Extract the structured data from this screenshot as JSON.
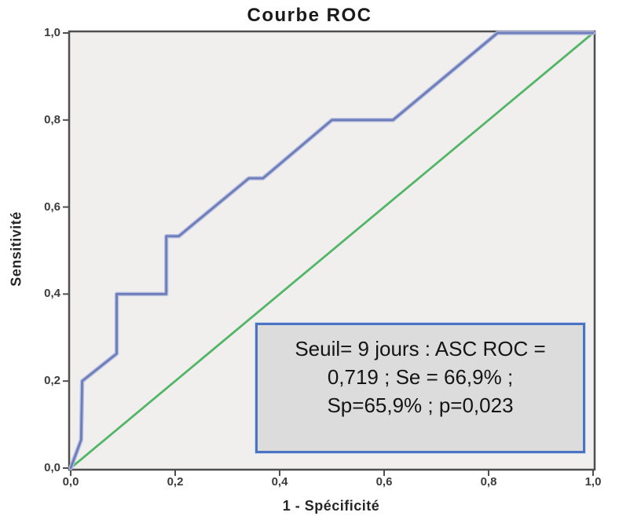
{
  "chart_data": {
    "type": "line",
    "title": "Courbe ROC",
    "xlabel": "1 - Spécificité",
    "ylabel": "Sensitivité",
    "xlim": [
      0,
      1
    ],
    "ylim": [
      0,
      1
    ],
    "grid": false,
    "legend": "none",
    "plot_background": "#f0efee",
    "frame_color": "#4f4f4f",
    "x_tick_labels": [
      "0,0",
      "0,2",
      "0,4",
      "0,6",
      "0,8",
      "1,0"
    ],
    "y_tick_labels": [
      "0,0",
      "0,2",
      "0,4",
      "0,6",
      "0,8",
      "1,0"
    ],
    "tick_values": [
      0,
      0.2,
      0.4,
      0.6,
      0.8,
      1.0
    ],
    "series": [
      {
        "name": "Courbe ROC",
        "kind": "roc-curve",
        "color": "#6d7cba",
        "halo_color": "#b8c0de",
        "points": [
          [
            0,
            0
          ],
          [
            0.02,
            0.065
          ],
          [
            0.022,
            0.2
          ],
          [
            0.088,
            0.263
          ],
          [
            0.088,
            0.4
          ],
          [
            0.183,
            0.4
          ],
          [
            0.183,
            0.533
          ],
          [
            0.207,
            0.533
          ],
          [
            0.341,
            0.666
          ],
          [
            0.368,
            0.666
          ],
          [
            0.5,
            0.8
          ],
          [
            0.617,
            0.8
          ],
          [
            0.817,
            1
          ],
          [
            1,
            1
          ]
        ]
      },
      {
        "name": "Ligne de référence",
        "kind": "reference-line",
        "color": "#53b667",
        "points": [
          [
            0,
            0
          ],
          [
            1,
            1
          ]
        ]
      }
    ],
    "annotation": {
      "lines": [
        "Seuil= 9 jours : ASC ROC =",
        "0,719 ; Se = 66,9% ;",
        "Sp=65,9% ; p=0,023"
      ],
      "border_color": "#4a73c2",
      "background": "#dcdcdc"
    },
    "stats": {
      "seuil": "9 jours",
      "asc_roc": "0,719",
      "se": "66,9%",
      "sp": "65,9%",
      "p": "0,023"
    }
  }
}
